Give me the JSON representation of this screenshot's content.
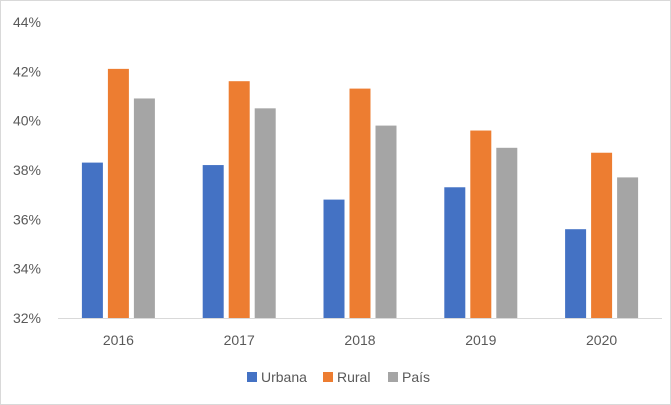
{
  "chart_data": {
    "type": "bar",
    "title": "",
    "xlabel": "",
    "ylabel": "",
    "categories": [
      "2016",
      "2017",
      "2018",
      "2019",
      "2020"
    ],
    "series": [
      {
        "name": "Urbana",
        "color": "#4472c4",
        "values": [
          38.3,
          38.2,
          36.8,
          37.3,
          35.6
        ]
      },
      {
        "name": "Rural",
        "color": "#ed7d31",
        "values": [
          42.1,
          41.6,
          41.3,
          39.6,
          38.7
        ]
      },
      {
        "name": "País",
        "color": "#a5a5a5",
        "values": [
          40.9,
          40.5,
          39.8,
          38.9,
          37.7
        ]
      }
    ],
    "ylim": [
      32,
      44
    ],
    "yticks": [
      32,
      34,
      36,
      38,
      40,
      42,
      44
    ],
    "ytick_labels": [
      "32%",
      "34%",
      "36%",
      "38%",
      "40%",
      "42%",
      "44%"
    ],
    "grid": false,
    "legend_position": "bottom"
  }
}
